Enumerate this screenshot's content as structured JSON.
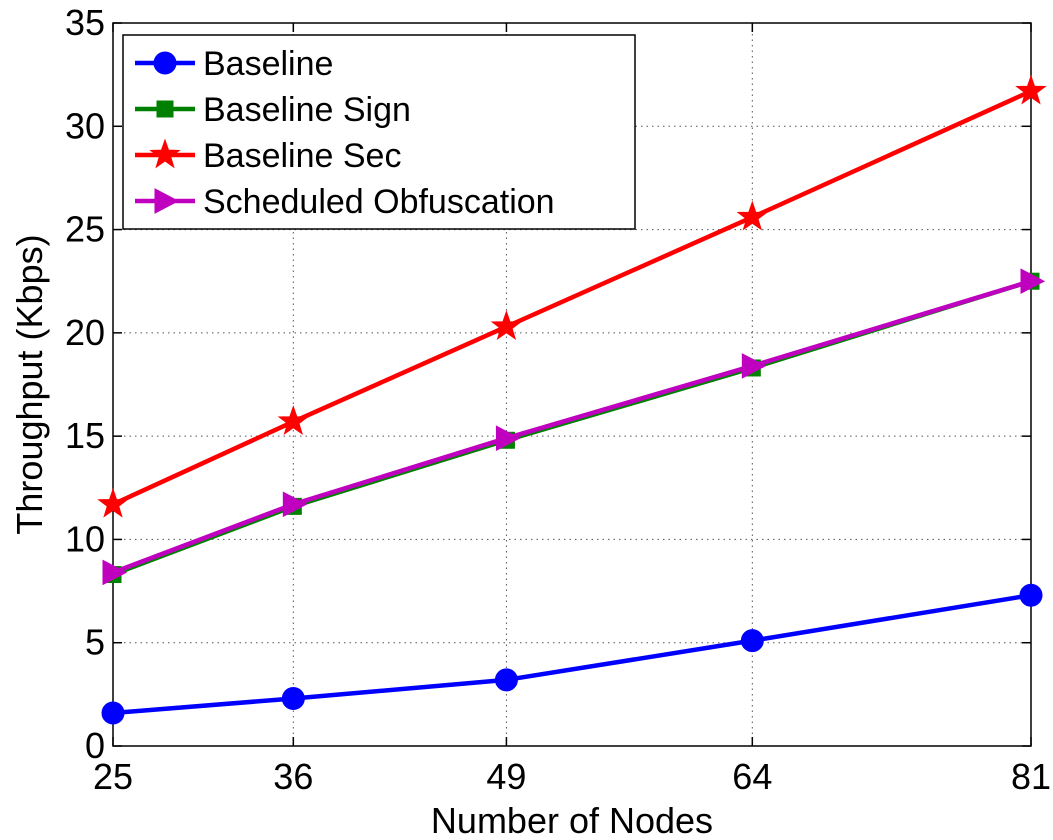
{
  "chart_data": {
    "type": "line",
    "title": "",
    "xlabel": "Number of Nodes",
    "ylabel": "Throughput (Kbps)",
    "categories": [
      "25",
      "36",
      "49",
      "64",
      "81"
    ],
    "xlim": [
      25,
      81
    ],
    "ylim": [
      0,
      35
    ],
    "yticks": [
      "0",
      "5",
      "10",
      "15",
      "20",
      "25",
      "30",
      "35"
    ],
    "grid": true,
    "legend_position": "top-left",
    "series": [
      {
        "name": "Baseline",
        "color": "#0000ff",
        "marker": "circle",
        "values": [
          1.6,
          2.3,
          3.2,
          5.1,
          7.3
        ]
      },
      {
        "name": "Baseline Sign",
        "color": "#008000",
        "marker": "square",
        "values": [
          8.3,
          11.6,
          14.8,
          18.3,
          22.5
        ]
      },
      {
        "name": "Baseline Sec",
        "color": "#ff0000",
        "marker": "star",
        "values": [
          11.7,
          15.7,
          20.3,
          25.6,
          31.7
        ]
      },
      {
        "name": "Scheduled Obfuscation",
        "color": "#bf00bf",
        "marker": "triangle-right",
        "values": [
          8.4,
          11.7,
          14.9,
          18.4,
          22.5
        ]
      }
    ]
  }
}
